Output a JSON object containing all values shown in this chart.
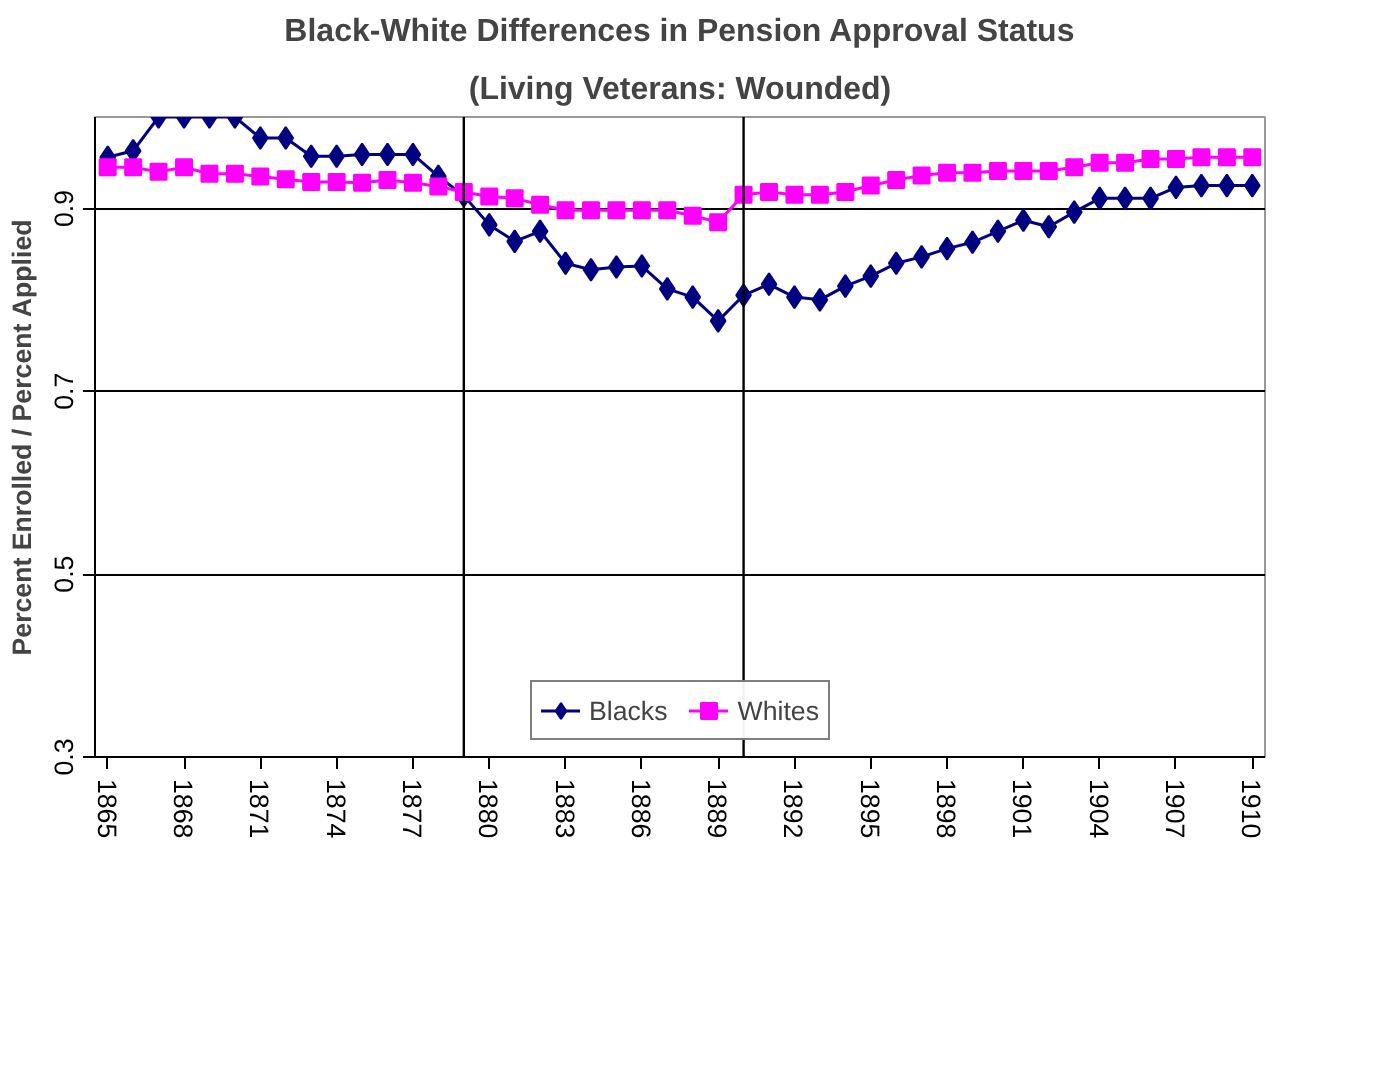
{
  "chart_data": {
    "type": "line",
    "title": "Black-White Differences in Pension Approval Status",
    "subtitle": "(Living Veterans: Wounded)",
    "ylabel": "Percent Enrolled / Percent Applied",
    "x": [
      1865,
      1866,
      1867,
      1868,
      1869,
      1870,
      1871,
      1872,
      1873,
      1874,
      1875,
      1876,
      1877,
      1878,
      1879,
      1880,
      1881,
      1882,
      1883,
      1884,
      1885,
      1886,
      1887,
      1888,
      1889,
      1890,
      1891,
      1892,
      1893,
      1894,
      1895,
      1896,
      1897,
      1898,
      1899,
      1900,
      1901,
      1902,
      1903,
      1904,
      1905,
      1906,
      1907,
      1908,
      1909,
      1910
    ],
    "series": [
      {
        "name": "Blacks",
        "color": "#000080",
        "marker": "diamond",
        "values": [
          0.956,
          0.963,
          1.0,
          1.0,
          1.0,
          1.0,
          0.977,
          0.977,
          0.957,
          0.957,
          0.959,
          0.959,
          0.959,
          0.935,
          0.914,
          0.882,
          0.864,
          0.875,
          0.84,
          0.833,
          0.836,
          0.837,
          0.812,
          0.803,
          0.777,
          0.805,
          0.817,
          0.803,
          0.8,
          0.815,
          0.826,
          0.84,
          0.847,
          0.856,
          0.863,
          0.875,
          0.887,
          0.88,
          0.896,
          0.911,
          0.911,
          0.911,
          0.923,
          0.925,
          0.925,
          0.925
        ]
      },
      {
        "name": "Whites",
        "color": "#ff00ff",
        "marker": "square",
        "values": [
          0.945,
          0.945,
          0.94,
          0.945,
          0.938,
          0.938,
          0.935,
          0.932,
          0.929,
          0.929,
          0.928,
          0.931,
          0.928,
          0.924,
          0.918,
          0.913,
          0.911,
          0.904,
          0.898,
          0.898,
          0.898,
          0.898,
          0.898,
          0.892,
          0.885,
          0.915,
          0.918,
          0.915,
          0.915,
          0.918,
          0.925,
          0.931,
          0.936,
          0.939,
          0.939,
          0.941,
          0.941,
          0.941,
          0.945,
          0.95,
          0.95,
          0.954,
          0.954,
          0.956,
          0.956,
          0.956
        ]
      }
    ],
    "xlim": [
      1864.5,
      1910.5
    ],
    "xticks": [
      1865,
      1868,
      1871,
      1874,
      1877,
      1880,
      1883,
      1886,
      1889,
      1892,
      1895,
      1898,
      1901,
      1904,
      1907,
      1910
    ],
    "ylim": [
      0.3,
      1.0
    ],
    "yticks": [
      0.3,
      0.5,
      0.7,
      0.9
    ],
    "ref_lines": [
      {
        "axis": "x",
        "value": 1879,
        "color": "#000000"
      },
      {
        "axis": "x",
        "value": 1890,
        "color": "#000000"
      }
    ],
    "grid": "y",
    "legend": "bottom"
  }
}
